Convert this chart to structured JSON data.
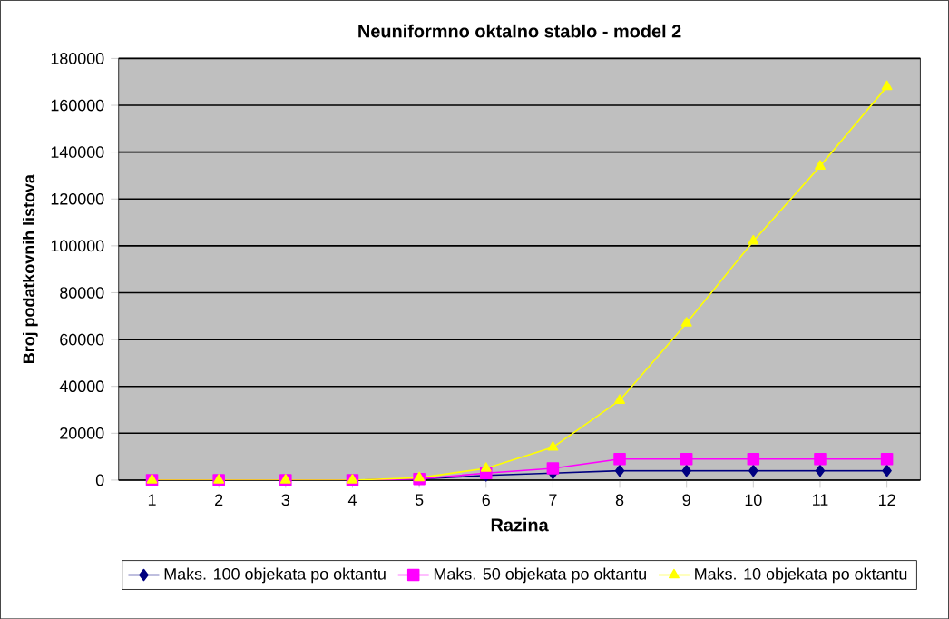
{
  "chart_data": {
    "type": "line",
    "title": "Neuniformno oktalno stablo - model 2",
    "xlabel": "Razina",
    "ylabel": "Broj podatkovnih listova",
    "categories": [
      "1",
      "2",
      "3",
      "4",
      "5",
      "6",
      "7",
      "8",
      "9",
      "10",
      "11",
      "12"
    ],
    "series": [
      {
        "name": "Maks. 100 objekata po oktantu",
        "color": "#000080",
        "marker": "diamond",
        "values": [
          null,
          null,
          null,
          0,
          500,
          2000,
          3000,
          4000,
          4000,
          4000,
          4000,
          4000
        ]
      },
      {
        "name": "Maks. 50 objekata po oktantu",
        "color": "#ff00ff",
        "marker": "square",
        "values": [
          0,
          0,
          0,
          0,
          500,
          3000,
          5000,
          9000,
          9000,
          9000,
          9000,
          9000
        ]
      },
      {
        "name": "Maks. 10 objekata po oktantu",
        "color": "#ffff00",
        "marker": "triangle",
        "values": [
          0,
          0,
          0,
          0,
          1000,
          5000,
          14000,
          34000,
          67000,
          102000,
          134000,
          168000
        ]
      }
    ],
    "ylim": [
      0,
      180000
    ],
    "yticks": [
      0,
      20000,
      40000,
      60000,
      80000,
      100000,
      120000,
      140000,
      160000,
      180000
    ],
    "grid": "y",
    "legend": "bottom"
  }
}
